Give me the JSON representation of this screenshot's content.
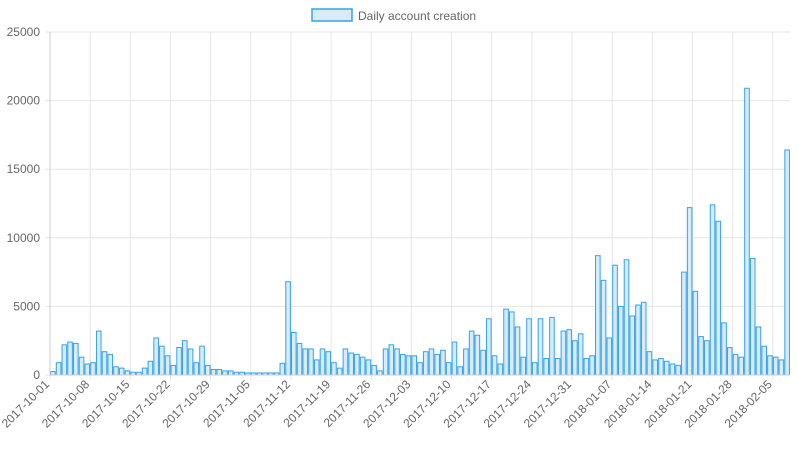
{
  "chart_data": {
    "type": "bar",
    "legend": {
      "label": "Daily account creation",
      "position": "top"
    },
    "ylim": [
      0,
      25000
    ],
    "y_ticks": [
      0,
      5000,
      10000,
      15000,
      20000,
      25000
    ],
    "grid": true,
    "colors": {
      "bar_fill": "#d6ecf8",
      "bar_stroke": "#36a2eb",
      "grid": "#e6e6e6",
      "tick_text": "#666666"
    },
    "x_start": "2017-10-01",
    "x_tick_labels": [
      "2017-10-01",
      "2017-10-08",
      "2017-10-15",
      "2017-10-22",
      "2017-10-29",
      "2017-11-05",
      "2017-11-12",
      "2017-11-19",
      "2017-11-26",
      "2017-12-03",
      "2017-12-10",
      "2017-12-17",
      "2017-12-24",
      "2017-12-31",
      "2018-01-07",
      "2018-01-14",
      "2018-01-21",
      "2018-01-28",
      "2018-02-05"
    ],
    "values": [
      250,
      900,
      2200,
      2400,
      2300,
      1300,
      800,
      900,
      3200,
      1700,
      1500,
      600,
      500,
      300,
      200,
      200,
      500,
      1000,
      2700,
      2100,
      1400,
      700,
      2000,
      2500,
      1900,
      900,
      2100,
      700,
      400,
      400,
      300,
      300,
      200,
      200,
      150,
      150,
      150,
      150,
      150,
      150,
      850,
      6800,
      3100,
      2300,
      1900,
      1900,
      1100,
      1900,
      1700,
      900,
      500,
      1900,
      1600,
      1500,
      1300,
      1100,
      700,
      300,
      1900,
      2200,
      1900,
      1500,
      1400,
      1400,
      900,
      1700,
      1900,
      1500,
      1800,
      900,
      2400,
      600,
      1900,
      3200,
      2900,
      1800,
      4100,
      1400,
      800,
      4800,
      4600,
      3500,
      1300,
      4100,
      900,
      4100,
      1200,
      4200,
      1200,
      3200,
      3300,
      2500,
      3000,
      1200,
      1400,
      8700,
      6900,
      2700,
      8000,
      5000,
      8400,
      4300,
      5100,
      5300,
      1700,
      1100,
      1200,
      1000,
      800,
      700,
      7500,
      12200,
      6100,
      2800,
      2500,
      12400,
      11200,
      3800,
      2000,
      1500,
      1300,
      20900,
      8500,
      3500,
      2100,
      1400,
      1300,
      1100,
      16400
    ]
  }
}
